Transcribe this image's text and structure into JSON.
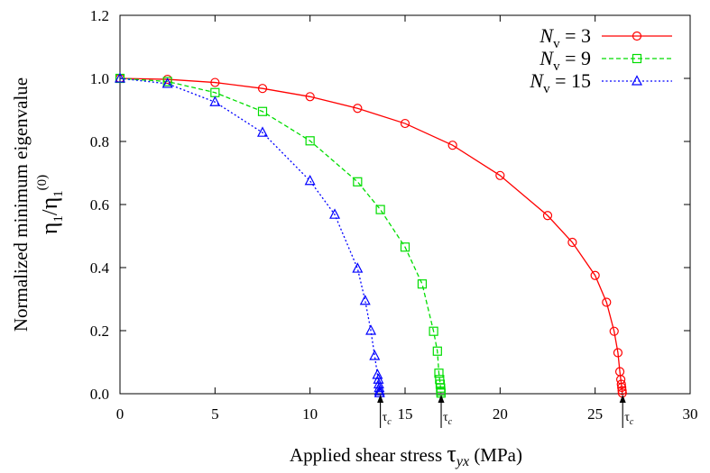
{
  "chart_data": {
    "type": "line",
    "xlabel": "Applied shear stress",
    "xlabel_symbol": "τ",
    "xlabel_subscript": "yx",
    "xlabel_unit": "(MPa)",
    "ylabel_line1": "Normalized minimum eigenvalue",
    "ylabel_line2_main": "η",
    "ylabel_line2_sub1": "1",
    "ylabel_line2_sep": "/",
    "ylabel_line2_main2": "η",
    "ylabel_line2_sub2": "1",
    "ylabel_line2_sup": "(0)",
    "xlim": [
      0,
      30
    ],
    "ylim": [
      0,
      1.2
    ],
    "xticks": [
      "0",
      "5",
      "10",
      "15",
      "20",
      "25",
      "30"
    ],
    "yticks": [
      "0.0",
      "0.2",
      "0.4",
      "0.6",
      "0.8",
      "1.0",
      "1.2"
    ],
    "legend_position": "top-right",
    "series": [
      {
        "name": "N_v = 3",
        "legend_symbol": "N",
        "legend_sub": "v",
        "legend_rest": " = 3",
        "color": "#ff0000",
        "marker": "circle",
        "dash": "solid",
        "x": [
          0,
          2.5,
          5,
          7.5,
          10,
          12.5,
          15,
          17.5,
          20,
          22.5,
          23.8,
          25,
          25.6,
          26.0,
          26.2,
          26.3,
          26.35,
          26.38,
          26.4,
          26.42,
          26.43
        ],
        "y": [
          1.0,
          0.997,
          0.987,
          0.968,
          0.942,
          0.905,
          0.857,
          0.788,
          0.692,
          0.565,
          0.48,
          0.375,
          0.29,
          0.198,
          0.13,
          0.07,
          0.045,
          0.03,
          0.02,
          0.01,
          0.002
        ]
      },
      {
        "name": "N_v = 9",
        "legend_symbol": "N",
        "legend_sub": "v",
        "legend_rest": " = 9",
        "color": "#00dd00",
        "marker": "square",
        "dash": "dashed",
        "x": [
          0,
          2.5,
          5,
          7.5,
          10,
          12.5,
          13.7,
          15,
          15.9,
          16.5,
          16.7,
          16.78,
          16.82,
          16.85,
          16.87,
          16.88,
          16.89
        ],
        "y": [
          1.0,
          0.99,
          0.955,
          0.895,
          0.802,
          0.672,
          0.584,
          0.465,
          0.348,
          0.198,
          0.135,
          0.065,
          0.045,
          0.03,
          0.018,
          0.008,
          0.002
        ],
        "tau_c": 16.9
      },
      {
        "name": "N_v = 15",
        "legend_symbol": "N",
        "legend_sub": "v",
        "legend_rest": " = 15",
        "color": "#0000ff",
        "marker": "triangle",
        "dash": "dotted",
        "x": [
          0,
          2.5,
          5,
          7.5,
          10,
          11.3,
          12.5,
          12.9,
          13.2,
          13.4,
          13.55,
          13.6,
          13.62,
          13.64,
          13.65,
          13.66
        ],
        "y": [
          1.0,
          0.983,
          0.925,
          0.828,
          0.675,
          0.568,
          0.397,
          0.295,
          0.2,
          0.12,
          0.06,
          0.045,
          0.03,
          0.018,
          0.008,
          0.002
        ],
        "tau_c": 13.7
      }
    ],
    "annotations": [
      {
        "text": "τ",
        "sub": "c",
        "x": 13.7
      },
      {
        "text": "τ",
        "sub": "c",
        "x": 16.9
      },
      {
        "text": "τ",
        "sub": "c",
        "x": 26.45
      }
    ]
  }
}
